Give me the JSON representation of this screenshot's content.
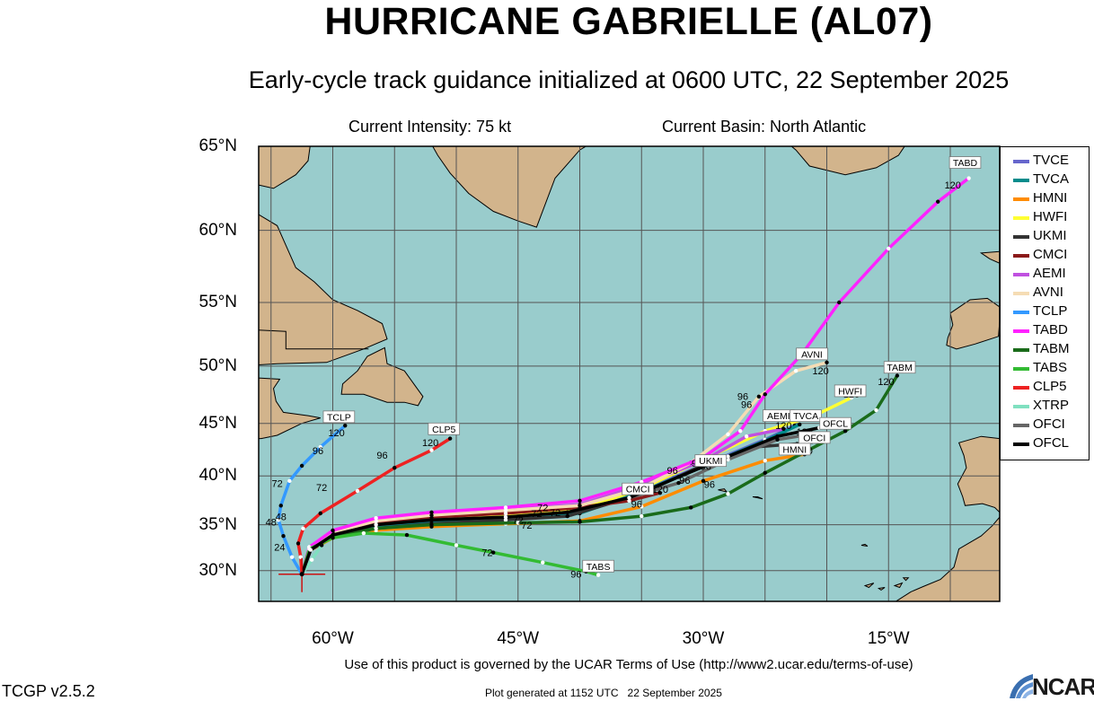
{
  "title": "HURRICANE GABRIELLE (AL07)",
  "subtitle": "Early-cycle track guidance initialized at 0600 UTC, 22 September 2025",
  "info": {
    "intensity": "Current Intensity: 75 kt",
    "basin": "Current Basin: North Atlantic"
  },
  "colors": {
    "ocean": "#99cccc",
    "land": "#d2b48c",
    "grid": "#555555"
  },
  "map": {
    "projection": "mercator",
    "lon_range": [
      -66,
      -6
    ],
    "lat_range": [
      26.5,
      65
    ],
    "initial_position": {
      "lon": -62.5,
      "lat": 29.6
    },
    "lat_labels": [
      {
        "lat": 65,
        "label": "65°N"
      },
      {
        "lat": 60,
        "label": "60°N"
      },
      {
        "lat": 55,
        "label": "55°N"
      },
      {
        "lat": 50,
        "label": "50°N"
      },
      {
        "lat": 45,
        "label": "45°N"
      },
      {
        "lat": 40,
        "label": "40°N"
      },
      {
        "lat": 35,
        "label": "35°N"
      },
      {
        "lat": 30,
        "label": "30°N"
      }
    ],
    "lon_labels": [
      {
        "lon": -60,
        "label": "60°W"
      },
      {
        "lon": -45,
        "label": "45°W"
      },
      {
        "lon": -30,
        "label": "30°W"
      },
      {
        "lon": -15,
        "label": "15°W"
      }
    ],
    "tracks": [
      {
        "model": "TVCE",
        "color": "#6666cc",
        "points": [
          [
            -62.5,
            29.6
          ],
          [
            -61.9,
            32.4
          ],
          [
            -60,
            33.9
          ],
          [
            -56.5,
            34.8
          ],
          [
            -52,
            35.3
          ],
          [
            -46,
            35.6
          ],
          [
            -40,
            36.3
          ],
          [
            -35,
            38.5
          ],
          [
            -30.3,
            40.9
          ],
          [
            -25,
            43.5
          ],
          [
            -22.6,
            44.8
          ]
        ]
      },
      {
        "model": "TVCA",
        "color": "#008b8b",
        "points": [
          [
            -62.5,
            29.6
          ],
          [
            -61.9,
            32.4
          ],
          [
            -60,
            33.9
          ],
          [
            -56.5,
            34.8
          ],
          [
            -52,
            35.2
          ],
          [
            -46,
            35.5
          ],
          [
            -40,
            36.2
          ],
          [
            -35,
            38.4
          ],
          [
            -30.3,
            40.8
          ],
          [
            -25,
            43.4
          ],
          [
            -22.2,
            44.9
          ]
        ]
      },
      {
        "model": "HMNI",
        "color": "#ff8c00",
        "labels": [
          {
            "t": "72",
            "lon": -45,
            "lat": 35.1
          },
          {
            "t": "96",
            "lon": -31.5,
            "lat": 39.2
          },
          {
            "t": "120",
            "lon": -21.8,
            "lat": 42.1
          }
        ],
        "points": [
          [
            -62.5,
            29.6
          ],
          [
            -61.9,
            32.2
          ],
          [
            -60,
            33.6
          ],
          [
            -56.5,
            34.4
          ],
          [
            -52,
            34.8
          ],
          [
            -46,
            35.1
          ],
          [
            -40,
            35.4
          ],
          [
            -35,
            36.9
          ],
          [
            -30,
            39.5
          ],
          [
            -25,
            41.5
          ],
          [
            -21.8,
            42.1
          ]
        ]
      },
      {
        "model": "HWFI",
        "color": "#ffff33",
        "labels": [
          {
            "t": "120",
            "lon": -18,
            "lat": 47.3
          }
        ],
        "points": [
          [
            -62.5,
            29.6
          ],
          [
            -61.9,
            32.5
          ],
          [
            -60,
            34.0
          ],
          [
            -56.5,
            35.1
          ],
          [
            -52,
            35.6
          ],
          [
            -46,
            36.0
          ],
          [
            -40,
            36.6
          ],
          [
            -35,
            38.7
          ],
          [
            -30,
            41.6
          ],
          [
            -25,
            44.3
          ],
          [
            -21,
            45.7
          ],
          [
            -18,
            47.3
          ]
        ]
      },
      {
        "model": "UKMI",
        "color": "#333333",
        "labels": [
          {
            "t": "72",
            "lon": -42,
            "lat": 35.9
          },
          {
            "t": "96",
            "lon": -30.5,
            "lat": 40.9
          }
        ],
        "points": [
          [
            -62.5,
            29.6
          ],
          [
            -61.8,
            32.3
          ],
          [
            -60,
            33.7
          ],
          [
            -56.5,
            34.6
          ],
          [
            -52,
            35.1
          ],
          [
            -46,
            35.5
          ],
          [
            -41,
            35.9
          ],
          [
            -35,
            38.2
          ],
          [
            -30.3,
            40.9
          ],
          [
            -26,
            42.8
          ],
          [
            -22.4,
            43.1
          ]
        ]
      },
      {
        "model": "CMCI",
        "color": "#8b1a1a",
        "labels": [
          {
            "t": "120",
            "lon": -33.5,
            "lat": 38.3
          }
        ],
        "points": [
          [
            -62.5,
            29.6
          ],
          [
            -61.9,
            32.5
          ],
          [
            -60,
            34.3
          ],
          [
            -56.5,
            35.3
          ],
          [
            -52,
            35.8
          ],
          [
            -46,
            36.2
          ],
          [
            -40,
            36.8
          ],
          [
            -36,
            37.5
          ],
          [
            -33.5,
            38.3
          ]
        ]
      },
      {
        "model": "AEMI",
        "color": "#c050e0",
        "labels": [
          {
            "t": "72",
            "lon": -43,
            "lat": 36.4
          },
          {
            "t": "96",
            "lon": -29.8,
            "lat": 40.6
          },
          {
            "t": "120",
            "lon": -23.5,
            "lat": 44.5
          }
        ],
        "points": [
          [
            -62.5,
            29.6
          ],
          [
            -61.9,
            32.6
          ],
          [
            -60,
            34.3
          ],
          [
            -56.5,
            35.6
          ],
          [
            -52,
            36.2
          ],
          [
            -46,
            36.6
          ],
          [
            -40,
            37.1
          ],
          [
            -35,
            39.1
          ],
          [
            -30,
            41.5
          ],
          [
            -26.5,
            43.8
          ],
          [
            -23.5,
            44.5
          ]
        ]
      },
      {
        "model": "AVNI",
        "color": "#f5dcb4",
        "labels": [
          {
            "t": "96",
            "lon": -26.5,
            "lat": 46.4
          },
          {
            "t": "120",
            "lon": -20.5,
            "lat": 49.3
          }
        ],
        "points": [
          [
            -62.5,
            29.6
          ],
          [
            -61.9,
            32.6
          ],
          [
            -60,
            34.2
          ],
          [
            -56.5,
            35.4
          ],
          [
            -52,
            36.0
          ],
          [
            -46,
            36.5
          ],
          [
            -40,
            37.0
          ],
          [
            -35,
            38.8
          ],
          [
            -31,
            41.3
          ],
          [
            -28,
            44.0
          ],
          [
            -25.5,
            47.4
          ],
          [
            -22.5,
            49.6
          ],
          [
            -20,
            50.3
          ]
        ]
      },
      {
        "model": "TCLP",
        "color": "#3399ff",
        "labels": [
          {
            "t": "24",
            "lon": -64.3,
            "lat": 32.2
          },
          {
            "t": "48",
            "lon": -65,
            "lat": 34.9
          },
          {
            "t": "72",
            "lon": -64.5,
            "lat": 38.9
          },
          {
            "t": "96",
            "lon": -61.2,
            "lat": 42.1
          },
          {
            "t": "120",
            "lon": -59.7,
            "lat": 43.8
          }
        ],
        "points": [
          [
            -62.5,
            29.6
          ],
          [
            -63.3,
            31.5
          ],
          [
            -64.0,
            33.8
          ],
          [
            -64.4,
            35.5
          ],
          [
            -64.2,
            37.0
          ],
          [
            -63.5,
            39.5
          ],
          [
            -62.5,
            41.0
          ],
          [
            -61.0,
            42.8
          ],
          [
            -59.0,
            44.8
          ]
        ]
      },
      {
        "model": "TABD",
        "color": "#ff22ff",
        "labels": [
          {
            "t": "96",
            "lon": -26.8,
            "lat": 47.1
          },
          {
            "t": "120",
            "lon": -9.8,
            "lat": 62.6
          }
        ],
        "points": [
          [
            -62.5,
            29.6
          ],
          [
            -61.9,
            32.6
          ],
          [
            -60,
            34.4
          ],
          [
            -56.5,
            35.7
          ],
          [
            -52,
            36.3
          ],
          [
            -46,
            36.8
          ],
          [
            -40,
            37.5
          ],
          [
            -35,
            39.4
          ],
          [
            -30,
            41.8
          ],
          [
            -27,
            44.3
          ],
          [
            -25,
            47.6
          ],
          [
            -22,
            51.0
          ],
          [
            -19,
            55.0
          ],
          [
            -15,
            58.8
          ],
          [
            -11,
            61.8
          ],
          [
            -8.5,
            63.2
          ]
        ]
      },
      {
        "model": "TABM",
        "color": "#1a6b1a",
        "labels": [
          {
            "t": "72",
            "lon": -44.3,
            "lat": 34.6
          },
          {
            "t": "96",
            "lon": -29.5,
            "lat": 38.8
          },
          {
            "t": "120",
            "lon": -15.2,
            "lat": 48.4
          }
        ],
        "points": [
          [
            -62.5,
            29.6
          ],
          [
            -61.9,
            32.2
          ],
          [
            -60,
            33.8
          ],
          [
            -56.5,
            34.6
          ],
          [
            -52,
            35.0
          ],
          [
            -45,
            35.2
          ],
          [
            -40,
            35.3
          ],
          [
            -35,
            35.9
          ],
          [
            -31,
            36.8
          ],
          [
            -28,
            38.2
          ],
          [
            -25,
            40.3
          ],
          [
            -21.5,
            42.5
          ],
          [
            -18.5,
            44.3
          ],
          [
            -16,
            46.2
          ],
          [
            -14.3,
            49.2
          ]
        ]
      },
      {
        "model": "TABS",
        "color": "#33bb33",
        "labels": [
          {
            "t": "72",
            "lon": -47.5,
            "lat": 31.6
          },
          {
            "t": "96",
            "lon": -40.3,
            "lat": 29.2
          }
        ],
        "points": [
          [
            -62.5,
            29.6
          ],
          [
            -61.9,
            32.4
          ],
          [
            -60,
            33.6
          ],
          [
            -57.5,
            34.1
          ],
          [
            -54,
            33.9
          ],
          [
            -50,
            32.8
          ],
          [
            -47,
            32.0
          ],
          [
            -43,
            30.9
          ],
          [
            -39.5,
            29.9
          ],
          [
            -38.5,
            29.5
          ]
        ]
      },
      {
        "model": "CLP5",
        "color": "#ee2222",
        "labels": [
          {
            "t": "48",
            "lon": -64.2,
            "lat": 35.5
          },
          {
            "t": "72",
            "lon": -60.9,
            "lat": 38.5
          },
          {
            "t": "96",
            "lon": -56,
            "lat": 41.7
          },
          {
            "t": "120",
            "lon": -52.1,
            "lat": 42.9
          }
        ],
        "points": [
          [
            -62.5,
            29.6
          ],
          [
            -62.6,
            31.5
          ],
          [
            -62.8,
            33.0
          ],
          [
            -62.4,
            34.6
          ],
          [
            -61,
            36.2
          ],
          [
            -58,
            38.5
          ],
          [
            -55,
            40.8
          ],
          [
            -52,
            42.5
          ],
          [
            -50.5,
            43.6
          ]
        ]
      },
      {
        "model": "XTRP",
        "color": "#80e0c0",
        "points": [
          [
            -62.5,
            29.6
          ],
          [
            -61.7,
            31.2
          ],
          [
            -60.9,
            32.8
          ]
        ]
      },
      {
        "model": "OFCI",
        "color": "#666666",
        "labels": [
          {
            "t": "72",
            "lon": -43.5,
            "lat": 35.8
          },
          {
            "t": "96",
            "lon": -35.4,
            "lat": 36.8
          },
          {
            "t": "120",
            "lon": -21.3,
            "lat": 43.1
          }
        ],
        "points": [
          [
            -62.5,
            29.6
          ],
          [
            -61.8,
            32.3
          ],
          [
            -60,
            33.9
          ],
          [
            -56.5,
            35.0
          ],
          [
            -52,
            35.5
          ],
          [
            -46,
            35.8
          ],
          [
            -41,
            36.3
          ],
          [
            -36,
            37.8
          ],
          [
            -32,
            39.3
          ],
          [
            -28,
            41.6
          ],
          [
            -24,
            43.5
          ],
          [
            -21.3,
            44.0
          ]
        ]
      },
      {
        "model": "OFCL",
        "color": "#000000",
        "labels": [
          {
            "t": "96",
            "lon": -32.5,
            "lat": 40.2
          },
          {
            "t": "120",
            "lon": -21.8,
            "lat": 43.9
          }
        ],
        "points": [
          [
            -62.5,
            29.6
          ],
          [
            -61.8,
            32.3
          ],
          [
            -60,
            33.9
          ],
          [
            -56.5,
            35.0
          ],
          [
            -52,
            35.5
          ],
          [
            -46,
            35.8
          ],
          [
            -41,
            36.3
          ],
          [
            -36,
            37.8
          ],
          [
            -32,
            39.9
          ],
          [
            -28,
            41.9
          ],
          [
            -24,
            43.8
          ],
          [
            -20.6,
            44.6
          ]
        ]
      }
    ],
    "end_labels": [
      {
        "text": "TABD",
        "lon": -8.8,
        "lat": 64.1
      },
      {
        "text": "AVNI",
        "lon": -21.2,
        "lat": 51.0
      },
      {
        "text": "TABM",
        "lon": -14.1,
        "lat": 49.9
      },
      {
        "text": "HWFI",
        "lon": -18.1,
        "lat": 47.9
      },
      {
        "text": "AEMI",
        "lon": -23.9,
        "lat": 45.7
      },
      {
        "text": "TVCA",
        "lon": -21.7,
        "lat": 45.7
      },
      {
        "text": "OFCL",
        "lon": -19.3,
        "lat": 45.0
      },
      {
        "text": "OFCI",
        "lon": -21.0,
        "lat": 43.7
      },
      {
        "text": "HMNI",
        "lon": -22.6,
        "lat": 42.6
      },
      {
        "text": "UKMI",
        "lon": -29.4,
        "lat": 41.5
      },
      {
        "text": "CMCI",
        "lon": -35.3,
        "lat": 38.7
      },
      {
        "text": "TCLP",
        "lon": -59.5,
        "lat": 45.6
      },
      {
        "text": "CLP5",
        "lon": -51.0,
        "lat": 44.5
      },
      {
        "text": "TABS",
        "lon": -38.5,
        "lat": 30.5
      }
    ]
  },
  "legend": [
    "TVCE",
    "TVCA",
    "HMNI",
    "HWFI",
    "UKMI",
    "CMCI",
    "AEMI",
    "AVNI",
    "TCLP",
    "TABD",
    "TABM",
    "TABS",
    "CLP5",
    "XTRP",
    "OFCI",
    "OFCL"
  ],
  "footer": {
    "terms": "Use of this product is governed by the UCAR Terms of Use (http://www2.ucar.edu/terms-of-use)",
    "version": "TCGP v2.5.2",
    "generated": "Plot generated at 1152 UTC   22 September 2025",
    "logo": "NCAR"
  }
}
